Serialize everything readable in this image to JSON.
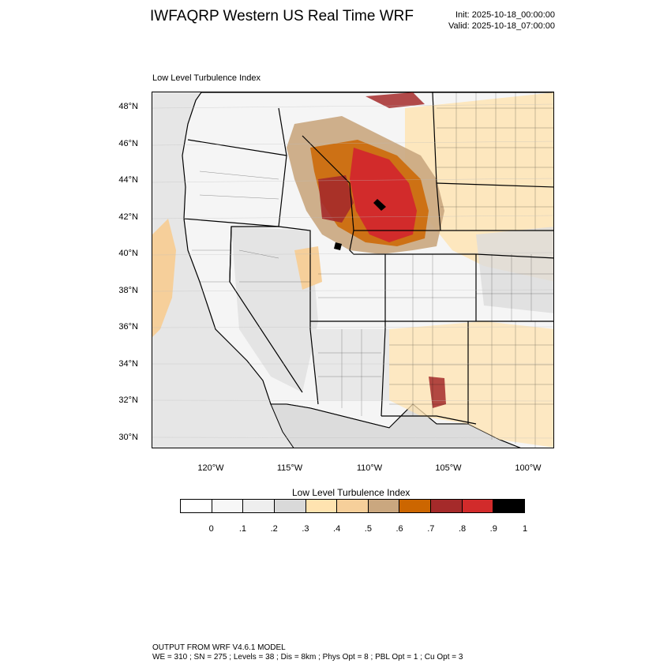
{
  "header": {
    "title": "IWFAQRP Western US Real Time WRF",
    "init": "Init: 2025-10-18_00:00:00",
    "valid": "Valid: 2025-10-18_07:00:00"
  },
  "map": {
    "subtitle": "Low Level Turbulence Index",
    "lat_labels": [
      "48°N",
      "46°N",
      "44°N",
      "42°N",
      "40°N",
      "38°N",
      "36°N",
      "34°N",
      "32°N",
      "30°N"
    ],
    "lon_labels": [
      "120°W",
      "115°W",
      "110°W",
      "105°W",
      "100°W"
    ],
    "ocean_color": "#e6e6e6"
  },
  "colorbar": {
    "title": "Low Level Turbulence Index",
    "colors": [
      "#ffffff",
      "#f7f7f7",
      "#eeeeee",
      "#d9d9d9",
      "#ffe3b0",
      "#f6cf9a",
      "#caa77f",
      "#cc6600",
      "#a52a2a",
      "#d22b2b",
      "#000000"
    ],
    "labels": [
      "0",
      ".1",
      ".2",
      ".3",
      ".4",
      ".5",
      ".6",
      ".7",
      ".8",
      ".9",
      "1"
    ]
  },
  "footer": {
    "line1": "OUTPUT FROM WRF V4.6.1 MODEL",
    "line2": "WE = 310 ; SN = 275 ; Levels = 38 ; Dis = 8km ; Phys Opt = 8 ; PBL Opt = 1 ; Cu Opt = 3"
  }
}
